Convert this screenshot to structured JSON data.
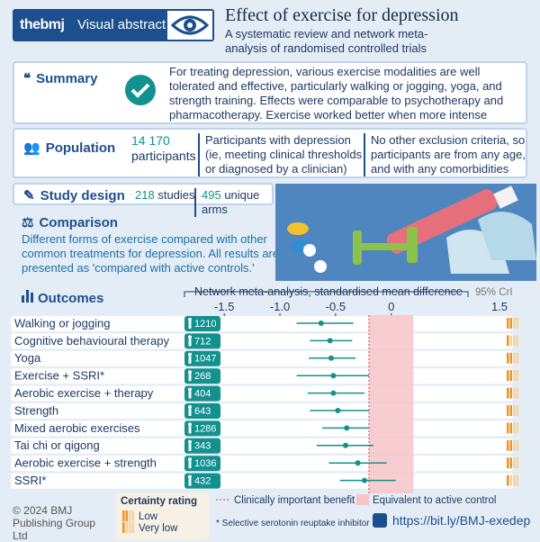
{
  "header": {
    "brand": "thebmj",
    "label": "Visual abstract",
    "title": "Effect of exercise for depression",
    "subtitle": "A systematic review and network meta-analysis of randomised controlled trials"
  },
  "summary": {
    "heading": "Summary",
    "text": "For treating depression, various exercise modalities are well tolerated and effective, particularly walking or jogging, yoga, and strength training. Effects were comparable to psychotherapy and pharmacotherapy. Exercise worked better when more intense"
  },
  "population": {
    "heading": "Population",
    "count": "14 170",
    "count_label": "participants",
    "criteria": "Participants with depression (ie, meeting clinical thresholds or diagnosed by a clinician)",
    "exclusion": "No other exclusion criteria, so participants are from any age, and with any comorbidities"
  },
  "study_design": {
    "heading": "Study design",
    "studies_count": "218",
    "studies_label": "studies",
    "arms_count": "495",
    "arms_label": "unique arms"
  },
  "comparison": {
    "heading": "Comparison",
    "text": "Different forms of exercise compared with other common treatments for depression. All results are presented as 'compared with active controls.'"
  },
  "outcomes": {
    "heading": "Outcomes",
    "axis_title": "Network meta-analysis, standardised mean difference",
    "ci_label": "95% CrI",
    "axis_end_label": "1.5",
    "xlim": [
      -1.55,
      0.35
    ],
    "xticks": [
      -1.5,
      {
        "value": -1,
        "label": "-1.0"
      },
      -0.5,
      0
    ],
    "clinical_threshold": -0.2,
    "equivalence": [
      -0.2,
      0.2
    ],
    "rows": [
      {
        "name": "Walking or jogging",
        "n": 1210,
        "estimate": -0.63,
        "lower": -0.85,
        "upper": -0.34,
        "certainty": 0
      },
      {
        "name": "Cognitive behavioural therapy",
        "n": 712,
        "estimate": -0.55,
        "lower": -0.73,
        "upper": -0.35,
        "certainty": 1
      },
      {
        "name": "Yoga",
        "n": 1047,
        "estimate": -0.54,
        "lower": -0.74,
        "upper": -0.32,
        "certainty": 0
      },
      {
        "name": "Exercise + SSRI*",
        "n": 268,
        "estimate": -0.52,
        "lower": -0.85,
        "upper": -0.2,
        "certainty": 0
      },
      {
        "name": "Aerobic exercise + therapy",
        "n": 404,
        "estimate": -0.52,
        "lower": -0.75,
        "upper": -0.24,
        "certainty": 0
      },
      {
        "name": "Strength",
        "n": 643,
        "estimate": -0.48,
        "lower": -0.73,
        "upper": -0.2,
        "certainty": 0
      },
      {
        "name": "Mixed aerobic exercises",
        "n": 1286,
        "estimate": -0.4,
        "lower": -0.62,
        "upper": -0.2,
        "certainty": 0
      },
      {
        "name": "Tai chi or qigong",
        "n": 343,
        "estimate": -0.41,
        "lower": -0.67,
        "upper": -0.16,
        "certainty": 0
      },
      {
        "name": "Aerobic exercise + strength",
        "n": 1036,
        "estimate": -0.3,
        "lower": -0.56,
        "upper": -0.04,
        "certainty": 0
      },
      {
        "name": "SSRI*",
        "n": 432,
        "estimate": -0.24,
        "lower": -0.46,
        "upper": 0.04,
        "certainty": 1
      }
    ]
  },
  "certainty": {
    "title": "Certainty rating",
    "levels": [
      {
        "label": "Low",
        "color": "#e8952a"
      },
      {
        "label": "Very low",
        "color": "#f5d39a"
      }
    ]
  },
  "legend": {
    "threshold": "Clinically important benefit",
    "equivalence": "Equivalent to active control",
    "footnote": "* Selective serotonin reuptake inhibitor"
  },
  "footer": {
    "copyright": "© 2024 BMJ Publishing Group Ltd",
    "link": "https://bit.ly/BMJ-exedep"
  }
}
